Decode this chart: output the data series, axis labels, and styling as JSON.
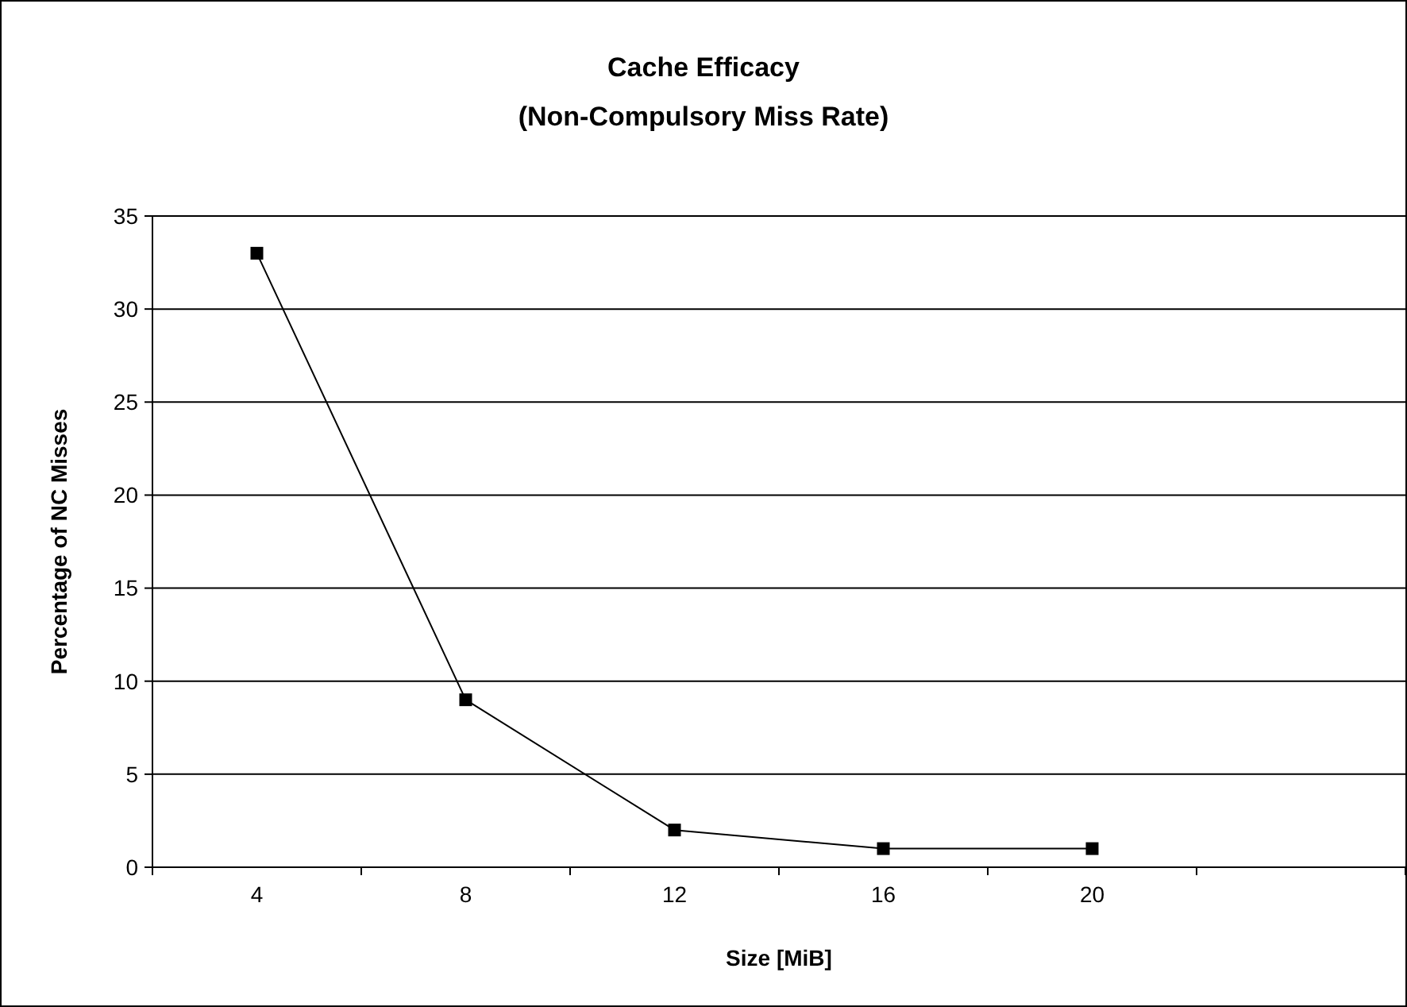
{
  "chart_data": {
    "type": "line",
    "title": "Cache Efficacy",
    "subtitle": "(Non-Compulsory Miss Rate)",
    "xlabel": "Size [MiB]",
    "ylabel": "Percentage of NC Misses",
    "categories": [
      "4",
      "8",
      "12",
      "16",
      "20",
      null
    ],
    "series": [
      {
        "color": "#000000",
        "values": [
          33,
          9,
          2,
          1,
          1,
          null
        ]
      }
    ],
    "ylim": [
      0,
      35
    ],
    "yticks": [
      0,
      5,
      10,
      15,
      20,
      25,
      30,
      35
    ],
    "grid": "y",
    "marker": "square",
    "line_style": "solid"
  }
}
